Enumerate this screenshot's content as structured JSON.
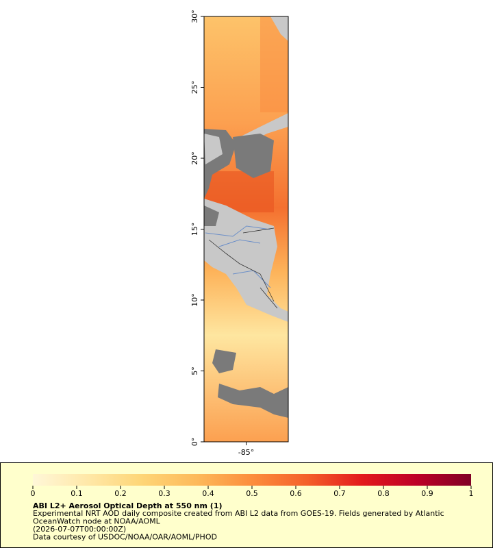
{
  "map": {
    "lat_ticks": [
      {
        "value": 30,
        "label": "30°"
      },
      {
        "value": 25,
        "label": "25°"
      },
      {
        "value": 20,
        "label": "20°"
      },
      {
        "value": 15,
        "label": "15°"
      },
      {
        "value": 10,
        "label": "10°"
      },
      {
        "value": 5,
        "label": "5°"
      },
      {
        "value": 0,
        "label": "0°"
      }
    ],
    "lon_ticks": [
      {
        "value": -85,
        "label": "-85°"
      }
    ],
    "latlim": [
      0,
      30
    ],
    "lonlim": [
      -88,
      -82
    ],
    "colorbar": {
      "lim": [
        0,
        1
      ],
      "ticks": [
        0,
        0.1,
        0.2,
        0.3,
        0.4,
        0.5,
        0.6,
        0.7,
        0.8,
        0.9,
        1
      ],
      "colors": [
        "#fff7d8",
        "#ffe8a8",
        "#fed576",
        "#fdb95a",
        "#fc8d3c",
        "#f4602a",
        "#e31a1c",
        "#bd0026",
        "#800026"
      ]
    },
    "title": "ABI L2+ Aerosol Optical Depth at 550 nm (1)",
    "lines": [
      "Experimental NRT AOD daily composite created from ABI L2 data from GOES-19. Fields generated by Atlantic",
      "OceanWatch node at NOAA/AOML",
      "(2026-07-07T00:00:00Z)",
      "Data courtesy of USDOC/NOAA/OAR/AOML/PHOD"
    ]
  }
}
